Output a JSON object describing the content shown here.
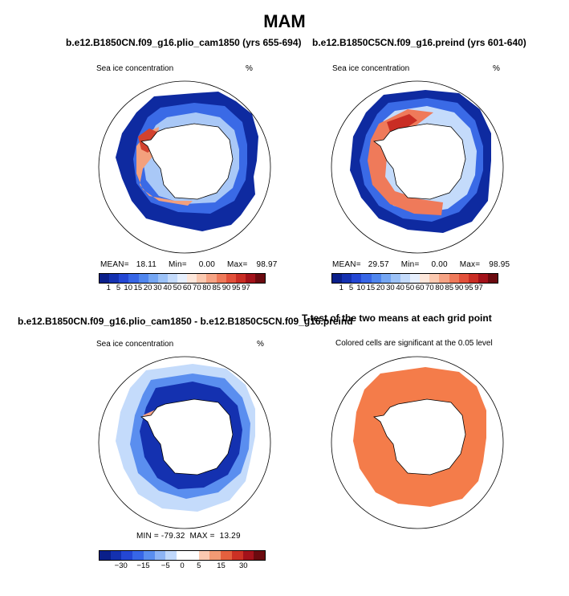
{
  "figure": {
    "season": "MAM",
    "panels": [
      {
        "title": "b.e12.B1850CN.f09_g16.plio_cam1850 (yrs 655-694)",
        "field_label": "Sea ice concentration",
        "units": "%",
        "stats": {
          "mean_label": "MEAN=",
          "mean": "18.11",
          "min_label": "Min=",
          "min": "0.00",
          "max_label": "Max=",
          "max": "98.97"
        }
      },
      {
        "title": "b.e12.B1850C5CN.f09_g16.preind (yrs 601-640)",
        "field_label": "Sea ice concentration",
        "units": "%",
        "stats": {
          "mean_label": "MEAN=",
          "mean": "29.57",
          "min_label": "Min=",
          "min": "0.00",
          "max_label": "Max=",
          "max": "98.95"
        }
      },
      {
        "title": "b.e12.B1850CN.f09_g16.plio_cam1850 - b.e12.B1850C5CN.f09_g16.preind",
        "field_label": "Sea ice concentration",
        "units": "%",
        "stats_text": "MIN = -79.32  MAX =  13.29"
      },
      {
        "title": "T-test of the two means at each grid point",
        "subtitle": "Colored cells are significant at the 0.05 level"
      }
    ],
    "colorbar_abs": {
      "colors": [
        "#0a1f8a",
        "#1431b0",
        "#2447d4",
        "#3766e6",
        "#4f86ee",
        "#74a6f3",
        "#9cc2f7",
        "#c4dbfb",
        "#e6effd",
        "#fde7db",
        "#fbc9b0",
        "#f6a384",
        "#ef7a5a",
        "#e2503a",
        "#c92d24",
        "#a3121a",
        "#6b0a0f"
      ],
      "ticks": [
        "1",
        "5",
        "10",
        "15",
        "20",
        "30",
        "40",
        "50",
        "60",
        "70",
        "80",
        "85",
        "90",
        "95",
        "97"
      ]
    },
    "colorbar_diff": {
      "colors": [
        "#0a1f8a",
        "#1431b0",
        "#2447d4",
        "#3766e6",
        "#5a8eef",
        "#8db4f5",
        "#c0d8fb",
        "#ffffff",
        "#ffffff",
        "#fbc9b0",
        "#f29a74",
        "#e5603e",
        "#cc3124",
        "#a3121a",
        "#6b0a0f"
      ],
      "ticks": [
        "−30",
        "−15",
        "−5",
        "0",
        "5",
        "15",
        "30"
      ]
    },
    "significance_color": "#f47c4a"
  }
}
